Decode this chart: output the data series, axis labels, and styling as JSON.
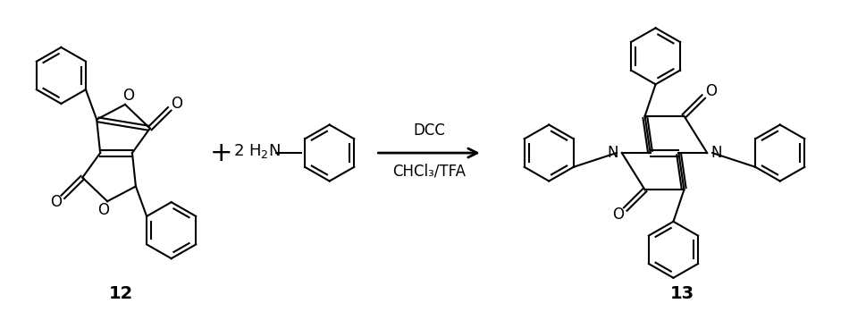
{
  "background_color": "#ffffff",
  "compound12_label": "12",
  "compound13_label": "13",
  "reagents_line1": "DCC",
  "reagents_line2": "CHCl₃/TFA",
  "fig_width": 9.7,
  "fig_height": 3.49,
  "dpi": 100
}
